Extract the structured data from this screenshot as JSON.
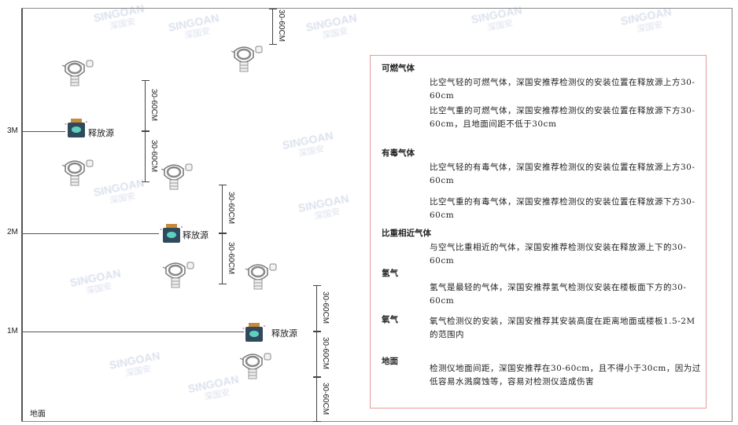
{
  "watermark": {
    "brand": "SINGOAN",
    "cn": "深国安"
  },
  "levels": [
    {
      "label": "3M"
    },
    {
      "label": "2M"
    },
    {
      "label": "1M"
    }
  ],
  "ground_label": "地面",
  "source_label": "释放源",
  "dimension_label": "30-60CM",
  "colors": {
    "frame": "#555555",
    "panel_border": "#e89a9a",
    "source_body": "#2f4a5c",
    "source_accent": "#5fd0c0",
    "source_cap": "#c98a3c"
  },
  "panel": {
    "sections": [
      {
        "heading": "可燃气体",
        "paragraphs": [
          "比空气轻的可燃气体，深国安推荐检测仪的安装位置在释放源上方30-60cm",
          "比空气重的可燃气体，深国安推荐检测仪的安装位置在释放源下方30-60cm，且地面间距不低于30cm"
        ]
      },
      {
        "heading": "有毒气体",
        "paragraphs": [
          "比空气轻的有毒气体，深国安推荐检测仪的安装位置在释放源上方30-60cm",
          "比空气重的有毒气体，深国安推荐检测仪的安装位置在释放源下方30-60cm"
        ]
      },
      {
        "heading": "比重相近气体",
        "paragraphs": [
          "与空气比重相近的气体，深国安推荐检测仪安装在释放源上下的30-60cm"
        ]
      },
      {
        "heading": "氢气",
        "paragraphs": [
          "氢气是最轻的气体，深国安推荐氢气检测仪安装在楼板面下方的30-60cm"
        ]
      },
      {
        "heading": "氧气",
        "paragraphs": [
          "氧气检测仪的安装，深国安推荐其安装高度在距离地面或楼板1.5-2M的范围内"
        ]
      },
      {
        "heading": "地面",
        "paragraphs": [
          "检测仪地面间距，深国安推荐在30-60cm，且不得小于30cm，因为过低容易水溅腐蚀等，容易对检测仪造成伤害"
        ]
      }
    ]
  }
}
